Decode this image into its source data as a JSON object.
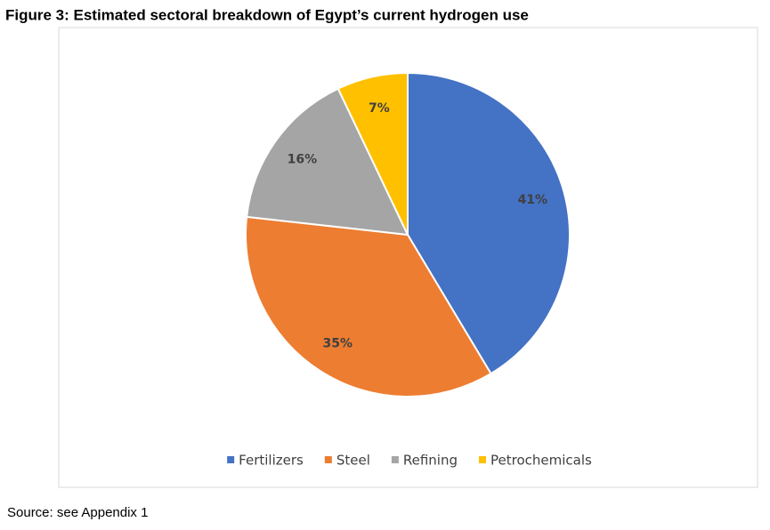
{
  "chart_data": {
    "type": "pie",
    "title": "Figure 3: Estimated sectoral breakdown of Egypt’s current hydrogen use",
    "categories": [
      "Fertilizers",
      "Steel",
      "Refining",
      "Petrochemicals"
    ],
    "values": [
      41,
      35,
      16,
      7
    ],
    "value_labels": [
      "41%",
      "35%",
      "16%",
      "7%"
    ],
    "colors": [
      "#4472c4",
      "#ed7d31",
      "#a5a5a5",
      "#ffc000"
    ],
    "legend": "bottom",
    "source": "Source: see Appendix 1"
  }
}
